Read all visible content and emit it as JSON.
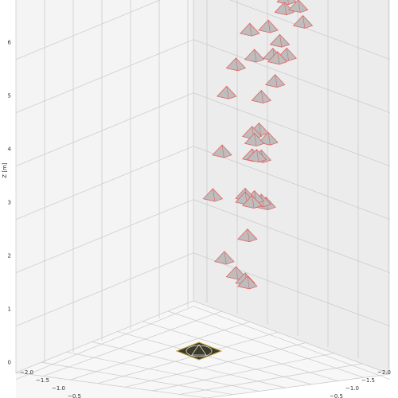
{
  "chart_data": {
    "type": "scatter",
    "subtype": "3d-camera-poses",
    "title": "",
    "zlabel": "Z [m]",
    "z_ticks": [
      "0",
      "1",
      "2",
      "3",
      "4",
      "5",
      "6"
    ],
    "x_ticks": [
      "−2.0",
      "−1.5",
      "−1.0",
      "−0.5"
    ],
    "y_ticks": [
      "−2.0",
      "−1.5",
      "−1.0",
      "−0.5"
    ],
    "zlim": [
      -0.1,
      6.6
    ],
    "grid": true,
    "colors": {
      "pane_left": "#f4f4f4",
      "pane_right": "#ececec",
      "floor": "#f7f7f7",
      "grid": "#c8c8c8",
      "camera_face": "#bdbdbd",
      "camera_edge": "#e06666",
      "marker_fill": "#3b3b2a",
      "marker_edge": "#c9a640"
    },
    "marker": {
      "type": "ground-target",
      "icon": "triangle-in-circle-icon"
    },
    "camera_icon": "pyramid-camera-icon",
    "points": [
      {
        "x": -0.3,
        "y": -1.85,
        "z": 6.55
      },
      {
        "x": 0.35,
        "y": -1.55,
        "z": 6.65
      },
      {
        "x": 0.55,
        "y": -1.3,
        "z": 6.55
      },
      {
        "x": 0.95,
        "y": -1.2,
        "z": 6.7
      },
      {
        "x": 1.35,
        "y": -0.9,
        "z": 6.55
      },
      {
        "x": 0.1,
        "y": -1.4,
        "z": 6.1
      },
      {
        "x": 0.75,
        "y": -1.0,
        "z": 6.05
      },
      {
        "x": -0.55,
        "y": -1.65,
        "z": 5.85
      },
      {
        "x": 1.2,
        "y": -0.7,
        "z": 5.95
      },
      {
        "x": 0.7,
        "y": -0.9,
        "z": 5.8
      },
      {
        "x": 0.9,
        "y": -0.8,
        "z": 5.8
      },
      {
        "x": -0.05,
        "y": -1.25,
        "z": 5.55
      },
      {
        "x": 0.95,
        "y": -0.7,
        "z": 5.4
      },
      {
        "x": -0.7,
        "y": -1.5,
        "z": 5.2
      },
      {
        "x": 0.55,
        "y": -0.8,
        "z": 5.0
      },
      {
        "x": -0.85,
        "y": -1.45,
        "z": 4.65
      },
      {
        "x": 0.55,
        "y": -0.75,
        "z": 4.4
      },
      {
        "x": 0.95,
        "y": -0.55,
        "z": 4.35
      },
      {
        "x": 0.15,
        "y": -1.0,
        "z": 4.2
      },
      {
        "x": 0.25,
        "y": -0.95,
        "z": 4.1
      },
      {
        "x": 0.95,
        "y": -0.4,
        "z": 4.05
      },
      {
        "x": 0.2,
        "y": -0.95,
        "z": 3.8
      },
      {
        "x": 0.4,
        "y": -0.85,
        "z": 3.85
      },
      {
        "x": -0.9,
        "y": -1.4,
        "z": 3.55
      },
      {
        "x": 1.2,
        "y": -0.25,
        "z": 3.25
      },
      {
        "x": 0.9,
        "y": -0.45,
        "z": 3.2
      },
      {
        "x": 0.55,
        "y": -0.65,
        "z": 3.15
      },
      {
        "x": 0.1,
        "y": -0.9,
        "z": 3.05
      },
      {
        "x": 0.15,
        "y": -0.85,
        "z": 3.0
      },
      {
        "x": 0.5,
        "y": -0.65,
        "z": 3.05
      },
      {
        "x": -0.95,
        "y": -1.25,
        "z": 2.75
      },
      {
        "x": 0.4,
        "y": -0.65,
        "z": 2.4
      },
      {
        "x": -0.4,
        "y": -0.95,
        "z": 1.75
      },
      {
        "x": 0.05,
        "y": -0.75,
        "z": 1.6
      },
      {
        "x": 0.55,
        "y": -0.45,
        "z": 1.65
      },
      {
        "x": 0.6,
        "y": -0.45,
        "z": 1.6
      }
    ]
  }
}
